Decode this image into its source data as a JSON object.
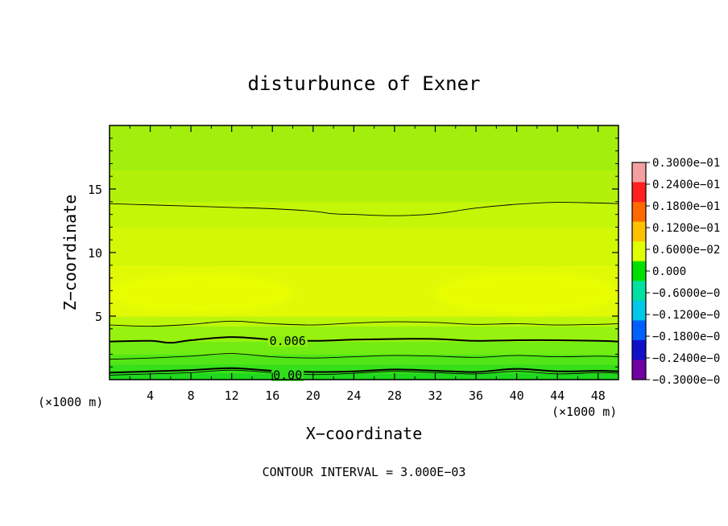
{
  "chart_data": {
    "type": "heatmap",
    "title": "disturbunce of Exner",
    "xlabel": "X−coordinate",
    "ylabel": "Z−coordinate",
    "x_unit": "(×1000 m)",
    "x_unit_right": "(×1000 m)",
    "xlim": [
      0,
      50
    ],
    "ylim": [
      0,
      20
    ],
    "x_ticks": [
      4,
      8,
      12,
      16,
      20,
      24,
      28,
      32,
      36,
      40,
      44,
      48
    ],
    "y_ticks": [
      5,
      10,
      15
    ],
    "contour_interval_label": "CONTOUR INTERVAL = 3.000E−03",
    "contour_labels": [
      {
        "text": "0.006",
        "x": 17.5,
        "z": 3.1
      },
      {
        "text": "0.00",
        "x": 17.5,
        "z": 0.4
      }
    ],
    "colorbar": {
      "min": -0.03,
      "max": 0.03,
      "labels": [
        "0.3000e−01",
        "0.2400e−01",
        "0.1800e−01",
        "0.1200e−01",
        "0.6000e−02",
        "0.000",
        "−0.6000e−0",
        "−0.1200e−0",
        "−0.1800e−0",
        "−0.2400e−0",
        "−0.3000e−0"
      ],
      "colors": [
        "#f5a0a0",
        "#ff2020",
        "#ff6a00",
        "#ffc000",
        "#e0ff00",
        "#00e000",
        "#00e0a0",
        "#00c8e8",
        "#0060ff",
        "#1010c8",
        "#7000a0"
      ]
    },
    "field_bands": [
      {
        "z0": 0.0,
        "z1": 0.5,
        "color": "#1ed81e"
      },
      {
        "z0": 0.5,
        "z1": 1.2,
        "color": "#36e01a"
      },
      {
        "z0": 1.2,
        "z1": 2.0,
        "color": "#52e616"
      },
      {
        "z0": 2.0,
        "z1": 3.0,
        "color": "#72ec12"
      },
      {
        "z0": 3.0,
        "z1": 4.2,
        "color": "#96f20e"
      },
      {
        "z0": 4.2,
        "z1": 5.0,
        "color": "#bcf60a"
      },
      {
        "z0": 5.0,
        "z1": 9.0,
        "color": "#e0fa06"
      },
      {
        "z0": 9.0,
        "z1": 12.0,
        "color": "#d2f806"
      },
      {
        "z0": 12.0,
        "z1": 14.0,
        "color": "#c4f608"
      },
      {
        "z0": 14.0,
        "z1": 16.5,
        "color": "#b2f20a"
      },
      {
        "z0": 16.5,
        "z1": 20.0,
        "color": "#a2ee0c"
      }
    ],
    "warm_spots": [
      {
        "x": 9,
        "z": 6.8,
        "rx": 9,
        "rz": 1.5,
        "color": "#eaff00"
      },
      {
        "x": 41,
        "z": 6.8,
        "rx": 9,
        "rz": 1.6,
        "color": "#eaff00"
      }
    ],
    "contours": [
      {
        "weight": "thin",
        "points": [
          [
            0,
            0.35
          ],
          [
            4,
            0.45
          ],
          [
            8,
            0.55
          ],
          [
            12,
            0.75
          ],
          [
            16,
            0.55
          ],
          [
            20,
            0.4
          ],
          [
            24,
            0.5
          ],
          [
            28,
            0.65
          ],
          [
            32,
            0.55
          ],
          [
            36,
            0.45
          ],
          [
            40,
            0.65
          ],
          [
            44,
            0.45
          ],
          [
            48,
            0.55
          ],
          [
            50,
            0.5
          ]
        ]
      },
      {
        "weight": "thick",
        "points": [
          [
            0,
            0.55
          ],
          [
            4,
            0.65
          ],
          [
            8,
            0.75
          ],
          [
            12,
            0.9
          ],
          [
            16,
            0.7
          ],
          [
            20,
            0.6
          ],
          [
            24,
            0.65
          ],
          [
            28,
            0.8
          ],
          [
            32,
            0.7
          ],
          [
            36,
            0.6
          ],
          [
            40,
            0.85
          ],
          [
            44,
            0.65
          ],
          [
            48,
            0.7
          ],
          [
            50,
            0.65
          ]
        ]
      },
      {
        "weight": "thin",
        "points": [
          [
            0,
            1.6
          ],
          [
            4,
            1.7
          ],
          [
            8,
            1.85
          ],
          [
            12,
            2.05
          ],
          [
            16,
            1.8
          ],
          [
            20,
            1.7
          ],
          [
            24,
            1.8
          ],
          [
            28,
            1.9
          ],
          [
            32,
            1.85
          ],
          [
            36,
            1.75
          ],
          [
            40,
            1.9
          ],
          [
            44,
            1.8
          ],
          [
            48,
            1.85
          ],
          [
            50,
            1.8
          ]
        ]
      },
      {
        "weight": "thick",
        "points": [
          [
            0,
            3.0
          ],
          [
            4,
            3.05
          ],
          [
            6,
            2.9
          ],
          [
            8,
            3.1
          ],
          [
            12,
            3.35
          ],
          [
            16,
            3.15
          ],
          [
            20,
            3.05
          ],
          [
            24,
            3.15
          ],
          [
            28,
            3.2
          ],
          [
            32,
            3.2
          ],
          [
            36,
            3.05
          ],
          [
            40,
            3.1
          ],
          [
            44,
            3.1
          ],
          [
            48,
            3.05
          ],
          [
            50,
            3.0
          ]
        ]
      },
      {
        "weight": "thin",
        "points": [
          [
            0,
            4.3
          ],
          [
            4,
            4.2
          ],
          [
            8,
            4.35
          ],
          [
            12,
            4.6
          ],
          [
            16,
            4.4
          ],
          [
            20,
            4.3
          ],
          [
            24,
            4.45
          ],
          [
            28,
            4.55
          ],
          [
            32,
            4.5
          ],
          [
            36,
            4.35
          ],
          [
            40,
            4.4
          ],
          [
            44,
            4.3
          ],
          [
            48,
            4.35
          ],
          [
            50,
            4.4
          ]
        ]
      },
      {
        "weight": "thin",
        "points": [
          [
            0,
            13.85
          ],
          [
            4,
            13.75
          ],
          [
            8,
            13.65
          ],
          [
            12,
            13.55
          ],
          [
            16,
            13.45
          ],
          [
            20,
            13.25
          ],
          [
            22,
            13.05
          ],
          [
            24,
            13.0
          ],
          [
            28,
            12.9
          ],
          [
            32,
            13.05
          ],
          [
            36,
            13.5
          ],
          [
            40,
            13.8
          ],
          [
            44,
            13.95
          ],
          [
            48,
            13.9
          ],
          [
            50,
            13.85
          ]
        ]
      }
    ]
  }
}
